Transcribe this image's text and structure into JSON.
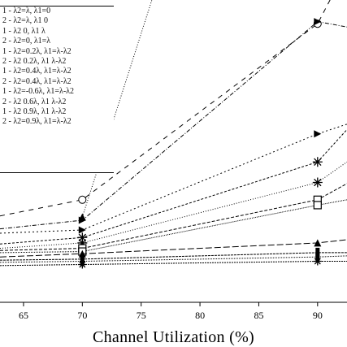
{
  "chart_data": {
    "type": "line",
    "xlabel": "Channel Utilization (%)",
    "x_ticks": [
      65,
      70,
      75,
      80,
      85,
      90
    ],
    "xlim": [
      63,
      92.5
    ],
    "ylim": [
      0,
      28
    ],
    "grid": false,
    "legend_placement": "top-left",
    "series": [
      {
        "name": "1 - λ2=λ, λ1=0",
        "marker": "circle",
        "dash": "6,6",
        "x": [
          63,
          70,
          90,
          92.5
        ],
        "y": [
          8.0,
          9.5,
          25.8,
          31
        ]
      },
      {
        "name": "2 - λ2=λ, λ1 0",
        "marker": "triangle-up",
        "dash": "1,2",
        "x": [
          70,
          76.5
        ],
        "y": [
          7.9,
          30
        ]
      },
      {
        "name": "1 - λ2 0, λ1 λ",
        "marker": "triangle-right",
        "dash": "5,2,1,2",
        "x": [
          63,
          70,
          90,
          92.5
        ],
        "y": [
          6.8,
          7.6,
          26.0,
          25.5
        ]
      },
      {
        "name": "2 - λ2=0, λ1=λ",
        "marker": "triangle-right",
        "dash": "2,3",
        "x": [
          63,
          70,
          90,
          92.5
        ],
        "y": [
          6.4,
          6.7,
          15.6,
          16.5
        ]
      },
      {
        "name": "1 - λ2=0.2λ, λ1=λ-λ2",
        "marker": "asterisk",
        "dash": "3,2",
        "x": [
          63,
          70,
          90,
          92.5
        ],
        "y": [
          5.4,
          6.0,
          13.0,
          16.0
        ]
      },
      {
        "name": "2 - λ2 0.2λ, λ1 λ-λ2",
        "marker": "asterisk",
        "dash": "1,2",
        "x": [
          63,
          70,
          90,
          92.5
        ],
        "y": [
          5.0,
          5.5,
          11.1,
          13.0
        ]
      },
      {
        "name": "1 - λ2=0.4λ, λ1=λ-λ2",
        "marker": "square",
        "dash": "4,2",
        "x": [
          63,
          70,
          90,
          92.5
        ],
        "y": [
          4.8,
          5.0,
          9.5,
          11.0
        ]
      },
      {
        "name": "2 - λ2=0.4λ, λ1=λ-λ2",
        "marker": "square",
        "dash": "1,1",
        "x": [
          63,
          70,
          90,
          92.5
        ],
        "y": [
          4.6,
          4.7,
          9.0,
          9.5
        ]
      },
      {
        "name": "1 - λ2=-0.6λ, λ1=λ-λ2",
        "marker": "triangle-up",
        "dash": "8,3",
        "x": [
          63,
          70,
          90,
          92.5
        ],
        "y": [
          4.2,
          4.5,
          5.5,
          5.8
        ]
      },
      {
        "name": "2 - λ2 0.6λ, λ1 λ-λ2",
        "marker": "bar",
        "dash": "3,1",
        "x": [
          63,
          70,
          90,
          92.5
        ],
        "y": [
          3.9,
          4.0,
          4.6,
          4.6
        ]
      },
      {
        "name": "1 - λ2 0.9λ, λ1 λ-λ2",
        "marker": "bar",
        "dash": "1,1",
        "x": [
          63,
          70,
          90,
          92.5
        ],
        "y": [
          3.7,
          3.8,
          4.2,
          4.3
        ]
      },
      {
        "name": "2 - λ2=0.9λ, λ1=λ-λ2",
        "marker": "star",
        "dash": "2,1",
        "x": [
          63,
          70,
          90,
          92.5
        ],
        "y": [
          3.4,
          3.5,
          3.8,
          3.8
        ]
      }
    ]
  }
}
